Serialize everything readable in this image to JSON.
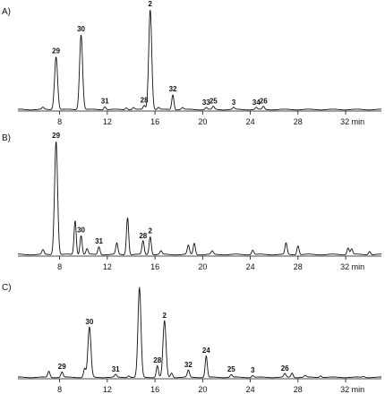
{
  "chart_data": [
    {
      "type": "line",
      "panel_label": "A)",
      "x_unit": "min",
      "xlim": [
        4.5,
        35
      ],
      "ticks": [
        8,
        12,
        16,
        20,
        24,
        28,
        32
      ],
      "tick_labels": [
        "8",
        "12",
        "16",
        "20",
        "24",
        "28",
        "32 min"
      ],
      "peaks": [
        {
          "label": "29",
          "x": 7.7,
          "height": 0.53
        },
        {
          "label": "30",
          "x": 9.8,
          "height": 0.75
        },
        {
          "label": "31",
          "x": 11.8,
          "height": 0.03
        },
        {
          "label": "28",
          "x": 15.1,
          "height": 0.04
        },
        {
          "label": "2",
          "x": 15.6,
          "height": 1.0
        },
        {
          "label": "32",
          "x": 17.5,
          "height": 0.15
        },
        {
          "label": "33",
          "x": 20.3,
          "height": 0.02
        },
        {
          "label": "25",
          "x": 20.9,
          "height": 0.03
        },
        {
          "label": "3",
          "x": 22.6,
          "height": 0.02
        },
        {
          "label": "34",
          "x": 24.5,
          "height": 0.02
        },
        {
          "label": "26",
          "x": 25.1,
          "height": 0.03
        }
      ],
      "minor_peaks": [
        {
          "x": 6.6,
          "height": 0.02
        },
        {
          "x": 13.6,
          "height": 0.02
        },
        {
          "x": 14.2,
          "height": 0.02
        },
        {
          "x": 16.3,
          "height": 0.02
        },
        {
          "x": 18.3,
          "height": 0.02
        }
      ]
    },
    {
      "type": "line",
      "panel_label": "B)",
      "x_unit": "min",
      "xlim": [
        4.5,
        35
      ],
      "ticks": [
        8,
        12,
        16,
        20,
        24,
        28,
        32
      ],
      "tick_labels": [
        "8",
        "12",
        "16",
        "20",
        "24",
        "28",
        "32 min"
      ],
      "peaks": [
        {
          "label": "29",
          "x": 7.7,
          "height": 1.0
        },
        {
          "label": "30",
          "x": 9.8,
          "height": 0.17
        },
        {
          "label": "31",
          "x": 11.3,
          "height": 0.07
        },
        {
          "label": "28",
          "x": 15.0,
          "height": 0.12
        },
        {
          "label": "2",
          "x": 15.6,
          "height": 0.16
        }
      ],
      "minor_peaks": [
        {
          "x": 6.6,
          "height": 0.04
        },
        {
          "x": 9.3,
          "height": 0.3
        },
        {
          "x": 10.3,
          "height": 0.05
        },
        {
          "x": 12.8,
          "height": 0.1
        },
        {
          "x": 13.7,
          "height": 0.33
        },
        {
          "x": 16.5,
          "height": 0.03
        },
        {
          "x": 18.8,
          "height": 0.08
        },
        {
          "x": 19.3,
          "height": 0.1
        },
        {
          "x": 20.8,
          "height": 0.03
        },
        {
          "x": 24.2,
          "height": 0.04
        },
        {
          "x": 27.0,
          "height": 0.1
        },
        {
          "x": 28.0,
          "height": 0.08
        },
        {
          "x": 32.2,
          "height": 0.06
        },
        {
          "x": 32.5,
          "height": 0.05
        },
        {
          "x": 34.0,
          "height": 0.03
        }
      ]
    },
    {
      "type": "line",
      "panel_label": "C)",
      "x_unit": "min",
      "xlim": [
        4.5,
        35
      ],
      "ticks": [
        8,
        12,
        16,
        20,
        24,
        28,
        32
      ],
      "tick_labels": [
        "8",
        "12",
        "16",
        "20",
        "24",
        "28",
        "32 min"
      ],
      "peaks": [
        {
          "label": "29",
          "x": 8.2,
          "height": 0.06
        },
        {
          "label": "30",
          "x": 10.5,
          "height": 0.56
        },
        {
          "label": "31",
          "x": 12.7,
          "height": 0.03
        },
        {
          "label": "28",
          "x": 16.2,
          "height": 0.13
        },
        {
          "label": "2",
          "x": 16.8,
          "height": 0.63
        },
        {
          "label": "32",
          "x": 18.8,
          "height": 0.08
        },
        {
          "label": "24",
          "x": 20.3,
          "height": 0.24
        },
        {
          "label": "25",
          "x": 22.4,
          "height": 0.03
        },
        {
          "label": "3",
          "x": 24.2,
          "height": 0.02
        },
        {
          "label": "26",
          "x": 26.9,
          "height": 0.04
        }
      ],
      "minor_peaks": [
        {
          "x": 7.1,
          "height": 0.07
        },
        {
          "x": 10.1,
          "height": 0.1
        },
        {
          "x": 14.7,
          "height": 1.0
        },
        {
          "x": 13.8,
          "height": 0.02
        },
        {
          "x": 17.4,
          "height": 0.05
        },
        {
          "x": 27.5,
          "height": 0.05
        },
        {
          "x": 28.6,
          "height": 0.02
        },
        {
          "x": 29.9,
          "height": 0.02
        },
        {
          "x": 33.5,
          "height": 0.01
        }
      ]
    }
  ]
}
